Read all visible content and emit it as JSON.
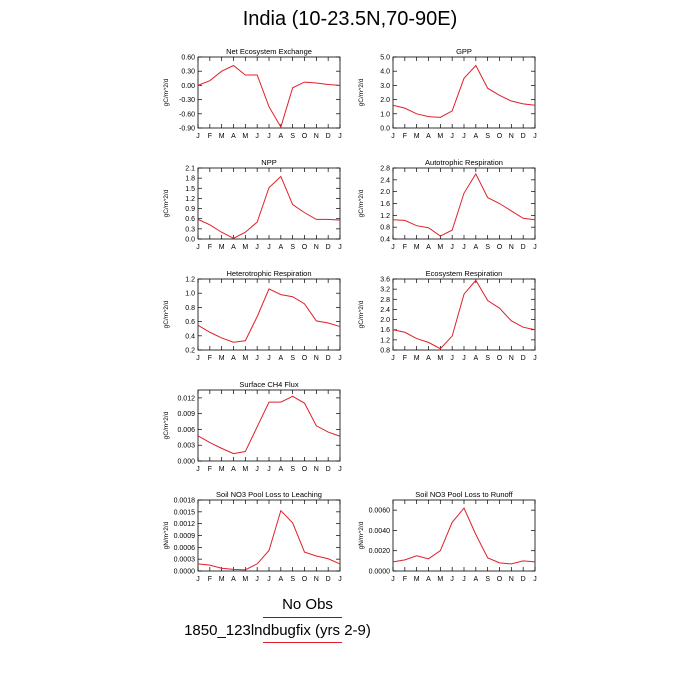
{
  "title": "India (10-23.5N,70-90E)",
  "legend": {
    "obs_label": "No Obs",
    "case_label": "1850_123lndbugfix (yrs 2-9)",
    "obs_color": "#2a2aa8",
    "case_color": "#e0202a"
  },
  "months": [
    "J",
    "F",
    "M",
    "A",
    "M",
    "J",
    "J",
    "A",
    "S",
    "O",
    "N",
    "D",
    "J"
  ],
  "chart_data": [
    {
      "type": "line",
      "title": "Net Ecosystem Exchange",
      "ylabel": "gC/m^2/d",
      "ylim": [
        -0.9,
        0.6
      ],
      "yticks": [
        "0.60",
        "0.30",
        "0.00",
        "-0.30",
        "-0.60",
        "-0.90"
      ],
      "yvals": [
        0.6,
        0.3,
        0.0,
        -0.3,
        -0.6,
        -0.9
      ],
      "series": [
        {
          "values": [
            0.0,
            0.1,
            0.3,
            0.42,
            0.22,
            0.22,
            -0.45,
            -0.88,
            -0.05,
            0.07,
            0.05,
            0.02,
            0.0
          ],
          "color": "#e0202a"
        }
      ]
    },
    {
      "type": "line",
      "title": "GPP",
      "ylabel": "gC/m^2/d",
      "ylim": [
        0.0,
        5.0
      ],
      "yticks": [
        "5.0",
        "4.0",
        "3.0",
        "2.0",
        "1.0",
        "0.0"
      ],
      "yvals": [
        5.0,
        4.0,
        3.0,
        2.0,
        1.0,
        0.0
      ],
      "series": [
        {
          "values": [
            1.6,
            1.4,
            1.0,
            0.8,
            0.75,
            1.2,
            3.5,
            4.4,
            2.8,
            2.3,
            1.9,
            1.7,
            1.6
          ],
          "color": "#e0202a"
        }
      ]
    },
    {
      "type": "line",
      "title": "NPP",
      "ylabel": "gC/m^2/d",
      "ylim": [
        0.0,
        2.1
      ],
      "yticks": [
        "2.1",
        "1.8",
        "1.5",
        "1.2",
        "0.9",
        "0.6",
        "0.3",
        "0.0"
      ],
      "yvals": [
        2.1,
        1.8,
        1.5,
        1.2,
        0.9,
        0.6,
        0.3,
        0.0
      ],
      "series": [
        {
          "values": [
            0.58,
            0.42,
            0.2,
            0.02,
            0.2,
            0.5,
            1.52,
            1.85,
            1.02,
            0.78,
            0.58,
            0.58,
            0.56
          ],
          "color": "#e0202a"
        }
      ]
    },
    {
      "type": "line",
      "title": "Autotrophic Respiration",
      "ylabel": "gC/m^2/d",
      "ylim": [
        0.4,
        2.8
      ],
      "yticks": [
        "2.8",
        "2.4",
        "2.0",
        "1.6",
        "1.2",
        "0.8",
        "0.4"
      ],
      "yvals": [
        2.8,
        2.4,
        2.0,
        1.6,
        1.2,
        0.8,
        0.4
      ],
      "series": [
        {
          "values": [
            1.05,
            1.03,
            0.85,
            0.78,
            0.5,
            0.7,
            1.95,
            2.6,
            1.8,
            1.6,
            1.35,
            1.1,
            1.05
          ],
          "color": "#e0202a"
        }
      ]
    },
    {
      "type": "line",
      "title": "Heterotrophic Respiration",
      "ylabel": "gC/m^2/d",
      "ylim": [
        0.2,
        1.2
      ],
      "yticks": [
        "1.2",
        "1.0",
        "0.8",
        "0.6",
        "0.4",
        "0.2"
      ],
      "yvals": [
        1.2,
        1.0,
        0.8,
        0.6,
        0.4,
        0.2
      ],
      "series": [
        {
          "values": [
            0.55,
            0.45,
            0.37,
            0.31,
            0.33,
            0.67,
            1.06,
            0.98,
            0.95,
            0.85,
            0.61,
            0.58,
            0.53
          ],
          "color": "#e0202a"
        }
      ]
    },
    {
      "type": "line",
      "title": "Ecosystem Respiration",
      "ylabel": "gC/m^2/d",
      "ylim": [
        0.8,
        3.6
      ],
      "yticks": [
        "3.6",
        "3.2",
        "2.8",
        "2.4",
        "2.0",
        "1.6",
        "1.2",
        "0.8"
      ],
      "yvals": [
        3.6,
        3.2,
        2.8,
        2.4,
        2.0,
        1.6,
        1.2,
        0.8
      ],
      "series": [
        {
          "values": [
            1.6,
            1.5,
            1.25,
            1.1,
            0.85,
            1.35,
            3.0,
            3.55,
            2.75,
            2.45,
            1.95,
            1.7,
            1.6
          ],
          "color": "#e0202a"
        }
      ]
    },
    {
      "type": "line",
      "title": "Surface CH4 Flux",
      "ylabel": "gC/m^2/d",
      "ylim": [
        0.0,
        0.0135
      ],
      "yticks": [
        "0.012",
        "0.009",
        "0.006",
        "0.003",
        "0.000"
      ],
      "yvals": [
        0.012,
        0.009,
        0.006,
        0.003,
        0.0
      ],
      "series": [
        {
          "values": [
            0.0048,
            0.0035,
            0.0024,
            0.0014,
            0.0018,
            0.0065,
            0.0112,
            0.0112,
            0.0123,
            0.011,
            0.0067,
            0.0055,
            0.0047
          ],
          "color": "#e0202a"
        }
      ]
    },
    {
      "type": "line",
      "title": "Soil NO3 Pool Loss to Leaching",
      "ylabel": "gN/m^2/d",
      "ylim": [
        0.0,
        0.0018
      ],
      "yticks": [
        "0.0018",
        "0.0015",
        "0.0012",
        "0.0009",
        "0.0006",
        "0.0003",
        "0.0000"
      ],
      "yvals": [
        0.0018,
        0.0015,
        0.0012,
        0.0009,
        0.0006,
        0.0003,
        0.0
      ],
      "series": [
        {
          "values": [
            0.00018,
            0.00015,
            7e-05,
            4e-05,
            3e-05,
            0.00018,
            0.00052,
            0.00153,
            0.00122,
            0.00048,
            0.00038,
            0.00031,
            0.00018
          ],
          "color": "#e0202a"
        }
      ]
    },
    {
      "type": "line",
      "title": "Soil NO3 Pool Loss to Runoff",
      "ylabel": "gN/m^2/d",
      "ylim": [
        0.0,
        0.007
      ],
      "yticks": [
        "0.0060",
        "0.0040",
        "0.0020",
        "0.0000"
      ],
      "yvals": [
        0.006,
        0.004,
        0.002,
        0.0
      ],
      "series": [
        {
          "values": [
            0.0009,
            0.0011,
            0.0015,
            0.0012,
            0.002,
            0.0048,
            0.0062,
            0.0036,
            0.0013,
            0.0008,
            0.0007,
            0.001,
            0.0009
          ],
          "color": "#e0202a"
        }
      ]
    }
  ]
}
